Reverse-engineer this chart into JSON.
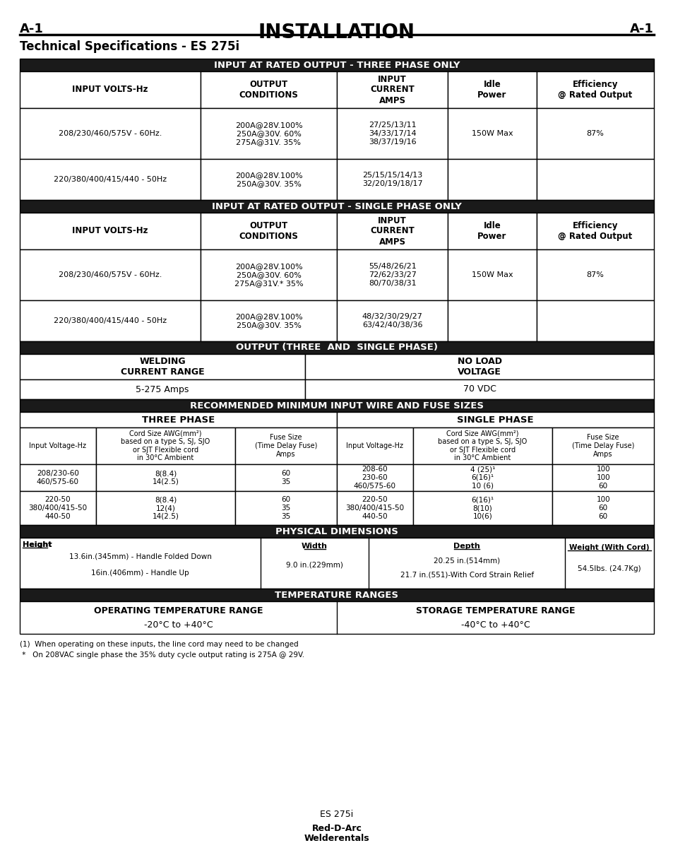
{
  "page_bg": "#ffffff",
  "header_left": "A-1",
  "header_center": "INSTALLATION",
  "header_right": "A-1",
  "subtitle": "Technical Specifications - ES 275i",
  "section_bg": "#1a1a1a",
  "section_text_color": "#ffffff",
  "table_border_color": "#000000",
  "sections": [
    {
      "type": "section_header",
      "text": "INPUT AT RATED OUTPUT - THREE PHASE ONLY"
    },
    {
      "type": "col_header_5",
      "cols": [
        "INPUT VOLTS-Hz",
        "OUTPUT\nCONDITIONS",
        "INPUT\nCURRENT\nAMPS",
        "Idle\nPower",
        "Efficiency\n@ Rated Output"
      ]
    },
    {
      "type": "data_row_5",
      "cols": [
        "208/230/460/575V - 60Hz.",
        "200A@28V.100%\n250A@30V. 60%\n275A@31V. 35%",
        "27/25/13/11\n34/33/17/14\n38/37/19/16",
        "150W Max",
        "87%"
      ]
    },
    {
      "type": "data_row_5",
      "cols": [
        "220/380/400/415/440 - 50Hz",
        "200A@28V.100%\n250A@30V. 35%",
        "25/15/15/14/13\n32/20/19/18/17",
        "",
        ""
      ]
    },
    {
      "type": "section_header",
      "text": "INPUT AT RATED OUTPUT - SINGLE PHASE ONLY"
    },
    {
      "type": "col_header_5",
      "cols": [
        "INPUT VOLTS-Hz",
        "OUTPUT\nCONDITIONS",
        "INPUT\nCURRENT\nAMPS",
        "Idle\nPower",
        "Efficiency\n@ Rated Output"
      ]
    },
    {
      "type": "data_row_5",
      "cols": [
        "208/230/460/575V - 60Hz.",
        "200A@28V.100%\n250A@30V. 60%\n275A@31V.* 35%",
        "55/48/26/21\n72/62/33/27\n80/70/38/31",
        "150W Max",
        "87%"
      ]
    },
    {
      "type": "data_row_5",
      "cols": [
        "220/380/400/415/440 - 50Hz",
        "200A@28V.100%\n250A@30V. 35%",
        "48/32/30/29/27\n63/42/40/38/36",
        "",
        ""
      ]
    },
    {
      "type": "section_header",
      "text": "OUTPUT (THREE  AND  SINGLE PHASE)"
    },
    {
      "type": "col_header_2",
      "cols": [
        "WELDING\nCURRENT RANGE",
        "NO LOAD\nVOLTAGE"
      ]
    },
    {
      "type": "data_row_2",
      "cols": [
        "5-275 Amps",
        "70 VDC"
      ]
    },
    {
      "type": "section_header",
      "text": "RECOMMENDED MINIMUM INPUT WIRE AND FUSE SIZES"
    },
    {
      "type": "wire_fuse_header",
      "left": "THREE PHASE",
      "right": "SINGLE PHASE"
    },
    {
      "type": "wire_fuse_col_header",
      "left_cols": [
        "Input Voltage-Hz",
        "Cord Size AWG(mm²)\nbased on a type S, SJ, SJO\nor SJT Flexible cord\nin 30°C Ambient",
        "Fuse Size\n(Time Delay Fuse)\nAmps"
      ],
      "right_cols": [
        "Input Voltage-Hz",
        "Cord Size AWG(mm²)\nbased on a type S, SJ, SJO\nor SJT Flexible cord\nin 30°C Ambient",
        "Fuse Size\n(Time Delay Fuse)\nAmps"
      ]
    },
    {
      "type": "wire_fuse_data",
      "left_rows": [
        [
          "208/230-60\n460/575-60",
          "8(8.4)\n14(2.5)",
          "60\n35"
        ],
        [
          "220-50\n380/400/415-50\n440-50",
          "8(8.4)\n12(4)\n14(2.5)",
          "60\n35\n35"
        ]
      ],
      "right_rows": [
        [
          "208-60\n230-60\n460/575-60",
          "4 (25)¹\n6(16)¹\n10 (6)",
          "100\n100\n60"
        ],
        [
          "220-50\n380/400/415-50\n440-50",
          "6(16)¹\n8(10)\n10(6)",
          "100\n60\n60"
        ]
      ]
    },
    {
      "type": "section_header",
      "text": "PHYSICAL DIMENSIONS"
    },
    {
      "type": "physical_dims",
      "height_label": "Height",
      "height_val1": "13.6in.(345mm) - Handle Folded Down",
      "height_val2": "16in.(406mm) - Handle Up",
      "width_label": "Width",
      "width_val": "9.0 in.(229mm)",
      "depth_label": "Depth",
      "depth_val1": "20.25 in.(514mm)",
      "depth_val2": "21.7 in.(551)-With Cord Strain Relief",
      "weight_label": "Weight (With Cord)",
      "weight_val": "54.5lbs. (24.7Kg)"
    },
    {
      "type": "section_header",
      "text": "TEMPERATURE RANGES"
    },
    {
      "type": "temp_ranges",
      "left_label": "OPERATING TEMPERATURE RANGE",
      "left_val": "-20°C to +40°C",
      "right_label": "STORAGE TEMPERATURE RANGE",
      "right_val": "-40°C to +40°C"
    }
  ],
  "footnotes": [
    "(1)  When operating on these inputs, the line cord may need to be changed",
    " *   On 208VAC single phase the 35% duty cycle output rating is 275A @ 29V."
  ],
  "footer_line1": "ES 275i",
  "footer_line2": "Red-D-Arc\nWelderentals"
}
